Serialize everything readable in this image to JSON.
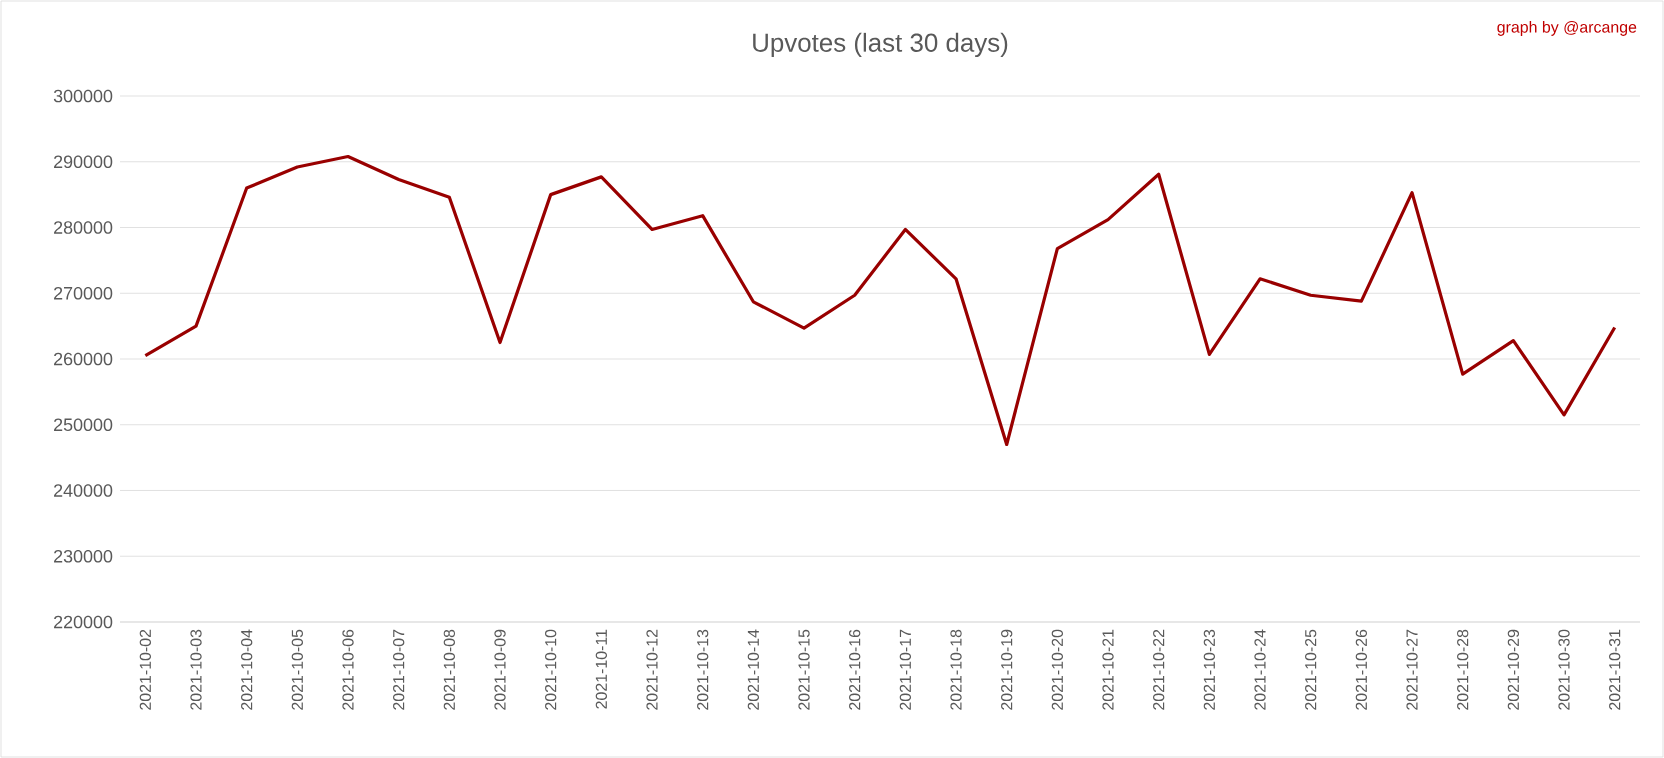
{
  "chart_data": {
    "type": "line",
    "title": "Upvotes (last 30 days)",
    "annotations": [
      "graph by @arcange"
    ],
    "categories": [
      "2021-10-02",
      "2021-10-03",
      "2021-10-04",
      "2021-10-05",
      "2021-10-06",
      "2021-10-07",
      "2021-10-08",
      "2021-10-09",
      "2021-10-10",
      "2021-10-11",
      "2021-10-12",
      "2021-10-13",
      "2021-10-14",
      "2021-10-15",
      "2021-10-16",
      "2021-10-17",
      "2021-10-18",
      "2021-10-19",
      "2021-10-20",
      "2021-10-21",
      "2021-10-22",
      "2021-10-23",
      "2021-10-24",
      "2021-10-25",
      "2021-10-26",
      "2021-10-27",
      "2021-10-28",
      "2021-10-29",
      "2021-10-30",
      "2021-10-31"
    ],
    "series": [
      {
        "color": "#990000",
        "values": [
          260500,
          265000,
          286000,
          289200,
          290800,
          287300,
          284600,
          262500,
          285000,
          287700,
          279700,
          281800,
          268700,
          264700,
          269700,
          279700,
          272200,
          247000,
          276800,
          281200,
          288100,
          260700,
          272200,
          269700,
          268800,
          285300,
          257700,
          262800,
          251500,
          264800
        ]
      }
    ],
    "ylim": [
      220000,
      300000
    ],
    "yticks": [
      220000,
      230000,
      240000,
      250000,
      260000,
      270000,
      280000,
      290000,
      300000
    ],
    "grid": "y",
    "marker": "none",
    "line_style": "solid"
  }
}
